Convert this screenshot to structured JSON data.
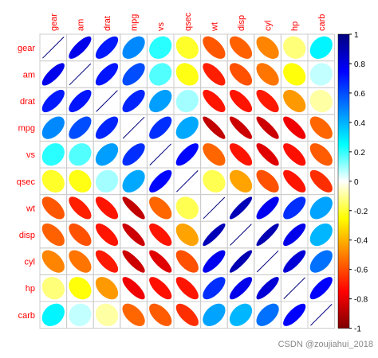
{
  "chart_data": {
    "type": "corrplot",
    "variables": [
      "gear",
      "am",
      "drat",
      "mpg",
      "vs",
      "qsec",
      "wt",
      "disp",
      "cyl",
      "hp",
      "carb"
    ],
    "values": [
      [
        1,
        0.79,
        0.7,
        0.48,
        0.21,
        -0.21,
        -0.58,
        -0.56,
        -0.49,
        -0.13,
        0.27
      ],
      [
        0.79,
        1,
        0.71,
        0.6,
        0.17,
        -0.23,
        -0.69,
        -0.59,
        -0.52,
        -0.24,
        0.06
      ],
      [
        0.7,
        0.71,
        1,
        0.68,
        0.44,
        0.09,
        -0.71,
        -0.71,
        -0.7,
        -0.45,
        -0.09
      ],
      [
        0.48,
        0.6,
        0.68,
        1,
        0.66,
        0.42,
        -0.87,
        -0.85,
        -0.85,
        -0.78,
        -0.55
      ],
      [
        0.21,
        0.17,
        0.44,
        0.66,
        1,
        0.74,
        -0.55,
        -0.71,
        -0.81,
        -0.72,
        -0.57
      ],
      [
        -0.21,
        -0.23,
        0.09,
        0.42,
        0.74,
        1,
        -0.17,
        -0.43,
        -0.59,
        -0.71,
        -0.66
      ],
      [
        -0.58,
        -0.69,
        -0.71,
        -0.87,
        -0.55,
        -0.17,
        1,
        0.89,
        0.78,
        0.66,
        0.43
      ],
      [
        -0.56,
        -0.59,
        -0.71,
        -0.85,
        -0.71,
        -0.43,
        0.89,
        1,
        0.9,
        0.79,
        0.39
      ],
      [
        -0.49,
        -0.52,
        -0.7,
        -0.85,
        -0.81,
        -0.59,
        0.78,
        0.9,
        1,
        0.83,
        0.53
      ],
      [
        -0.13,
        -0.24,
        -0.45,
        -0.78,
        -0.72,
        -0.71,
        0.66,
        0.79,
        0.83,
        1,
        0.75
      ],
      [
        0.27,
        0.06,
        -0.09,
        -0.55,
        -0.57,
        -0.66,
        0.43,
        0.39,
        0.53,
        0.75,
        1
      ]
    ],
    "colors": [
      "#7F0000",
      "#FF0000",
      "#FF7F00",
      "#FFFF00",
      "#FFFFFF",
      "#00FFFF",
      "#007FFF",
      "#0000FF",
      "#00007F"
    ],
    "clim": [
      -1,
      1
    ],
    "cticks": [
      -1,
      -0.8,
      -0.6,
      -0.4,
      -0.2,
      0,
      0.2,
      0.4,
      0.6,
      0.8,
      1
    ],
    "label_color": "#FF0000",
    "watermark": "CSDN @zoujiahui_2018"
  }
}
